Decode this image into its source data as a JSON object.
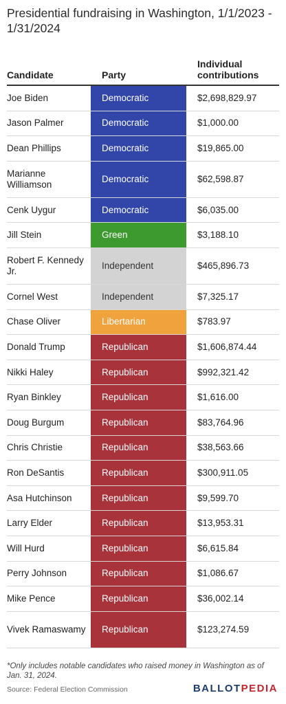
{
  "title": "Presidential fundraising in Washington, 1/1/2023 - 1/31/2024",
  "headers": {
    "candidate": "Candidate",
    "party": "Party",
    "contributions": "Individual contributions"
  },
  "party_colors": {
    "Democratic": "#3146a8",
    "Green": "#3c9a2e",
    "Independent": "#d3d3d3",
    "Libertarian": "#f0a23c",
    "Republican": "#a9333b"
  },
  "rows": [
    {
      "candidate": "Joe Biden",
      "party": "Democratic",
      "contributions": "$2,698,829.97"
    },
    {
      "candidate": "Jason Palmer",
      "party": "Democratic",
      "contributions": "$1,000.00"
    },
    {
      "candidate": "Dean Phillips",
      "party": "Democratic",
      "contributions": "$19,865.00"
    },
    {
      "candidate": "Marianne Williamson",
      "party": "Democratic",
      "contributions": "$62,598.87"
    },
    {
      "candidate": "Cenk Uygur",
      "party": "Democratic",
      "contributions": "$6,035.00"
    },
    {
      "candidate": "Jill Stein",
      "party": "Green",
      "contributions": "$3,188.10"
    },
    {
      "candidate": "Robert F. Kennedy Jr.",
      "party": "Independent",
      "contributions": "$465,896.73"
    },
    {
      "candidate": "Cornel West",
      "party": "Independent",
      "contributions": "$7,325.17"
    },
    {
      "candidate": "Chase Oliver",
      "party": "Libertarian",
      "contributions": "$783.97"
    },
    {
      "candidate": "Donald Trump",
      "party": "Republican",
      "contributions": "$1,606,874.44"
    },
    {
      "candidate": "Nikki Haley",
      "party": "Republican",
      "contributions": "$992,321.42"
    },
    {
      "candidate": "Ryan Binkley",
      "party": "Republican",
      "contributions": "$1,616.00"
    },
    {
      "candidate": "Doug Burgum",
      "party": "Republican",
      "contributions": "$83,764.96"
    },
    {
      "candidate": "Chris Christie",
      "party": "Republican",
      "contributions": "$38,563.66"
    },
    {
      "candidate": "Ron DeSantis",
      "party": "Republican",
      "contributions": "$300,911.05"
    },
    {
      "candidate": "Asa Hutchinson",
      "party": "Republican",
      "contributions": "$9,599.70"
    },
    {
      "candidate": "Larry Elder",
      "party": "Republican",
      "contributions": "$13,953.31"
    },
    {
      "candidate": "Will Hurd",
      "party": "Republican",
      "contributions": "$6,615.84"
    },
    {
      "candidate": "Perry Johnson",
      "party": "Republican",
      "contributions": "$1,086.67"
    },
    {
      "candidate": "Mike Pence",
      "party": "Republican",
      "contributions": "$36,002.14"
    },
    {
      "candidate": "Vivek Ramaswamy",
      "party": "Republican",
      "contributions": "$123,274.59"
    }
  ],
  "footnote": "*Only includes notable candidates who raised money in Washington as of Jan. 31, 2024.",
  "source": "Source: Federal Election Commission",
  "logo": {
    "part1": "BALLOT",
    "part2": "PEDIA"
  }
}
